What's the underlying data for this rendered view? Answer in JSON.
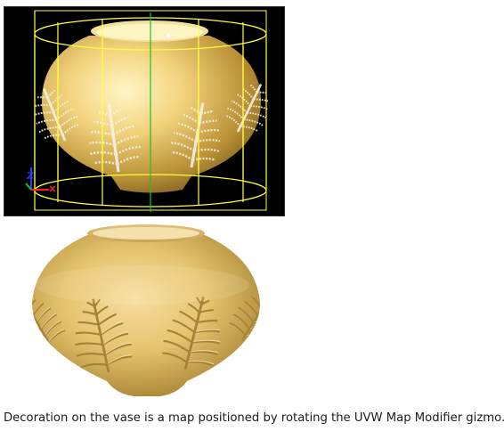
{
  "viewport": {
    "background": "#000000",
    "gizmo_color": "#ffff40",
    "axis_colors": {
      "x": "#ff2020",
      "y": "#20c020",
      "z": "#2040ff"
    },
    "axis_icon": "xyz-axis-tripod-icon"
  },
  "vase": {
    "body_color": "#e5c46f",
    "highlight_color": "#fff1b8",
    "shadow_color": "#9a7a2a",
    "decoration": "fern-leaf-pattern"
  },
  "caption": "Decoration on the vase is a map positioned by rotating the UVW Map Modifier gizmo."
}
